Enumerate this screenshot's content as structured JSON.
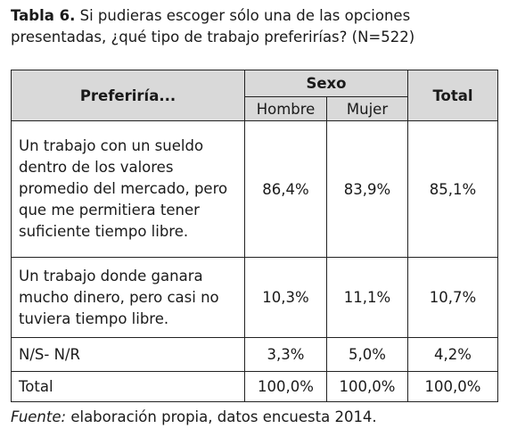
{
  "title": {
    "label": "Tabla 6.",
    "text": "Si pudieras escoger sólo una de las opciones presentadas, ¿qué tipo de trabajo preferirías? (N=522)"
  },
  "table": {
    "header": {
      "first": "Preferiría...",
      "group": "Sexo",
      "subcolumns": [
        "Hombre",
        "Mujer"
      ],
      "last": "Total"
    },
    "rows": [
      [
        "Un trabajo con un sueldo dentro de los valores promedio del mercado, pero que me permitiera tener suficiente tiempo libre.",
        "86,4%",
        "83,9%",
        "85,1%"
      ],
      [
        "Un trabajo donde ganara mucho dinero, pero casi no tuviera tiempo libre.",
        "10,3%",
        "11,1%",
        "10,7%"
      ],
      [
        "N/S- N/R",
        "3,3%",
        "5,0%",
        "4,2%"
      ],
      [
        "Total",
        "100,0%",
        "100,0%",
        "100,0%"
      ]
    ]
  },
  "source": {
    "label": "Fuente:",
    "text": "elaboración propia, datos encuesta 2014."
  }
}
